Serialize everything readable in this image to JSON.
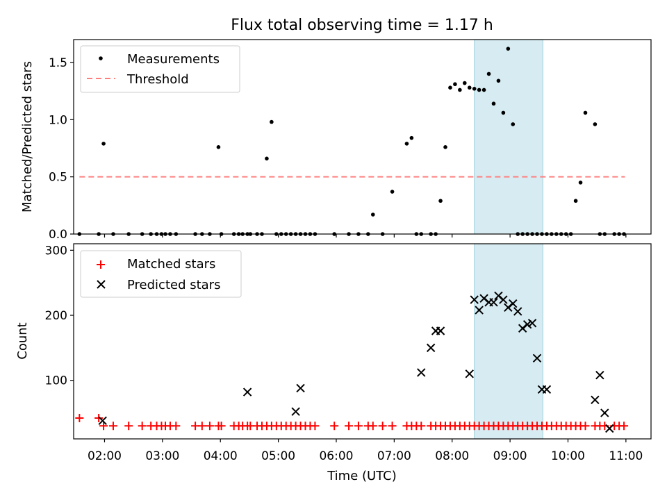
{
  "chart_data": [
    {
      "type": "scatter",
      "title": "Flux total observing time = 1.17 h",
      "xlabel": "",
      "ylabel": "Matched/Predicted stars",
      "xlim": [
        "01:28",
        "11:26"
      ],
      "ylim": [
        0,
        1.7
      ],
      "yticks": [
        0.0,
        0.5,
        1.0,
        1.5
      ],
      "ytick_labels": [
        "0.0",
        "0.5",
        "1.0",
        "1.5"
      ],
      "highlight_span": [
        "08:23",
        "09:34"
      ],
      "legend_position": "upper left",
      "series": [
        {
          "name": "Measurements",
          "marker": "dot",
          "color": "#000000",
          "x": [
            "01:34",
            "01:54",
            "01:59",
            "02:09",
            "02:25",
            "02:39",
            "02:48",
            "02:54",
            "02:59",
            "03:03",
            "03:08",
            "03:14",
            "03:34",
            "03:41",
            "03:49",
            "03:58",
            "04:01",
            "04:14",
            "04:19",
            "04:23",
            "04:28",
            "04:31",
            "04:38",
            "04:43",
            "04:48",
            "04:53",
            "04:58",
            "05:03",
            "05:08",
            "05:13",
            "05:18",
            "05:23",
            "05:28",
            "05:33",
            "05:38",
            "05:58",
            "06:13",
            "06:23",
            "06:33",
            "06:38",
            "06:48",
            "06:58",
            "07:13",
            "07:18",
            "07:23",
            "07:28",
            "07:38",
            "07:43",
            "07:48",
            "07:53",
            "07:58",
            "08:03",
            "08:08",
            "08:13",
            "08:18",
            "08:23",
            "08:28",
            "08:33",
            "08:38",
            "08:43",
            "08:48",
            "08:53",
            "08:58",
            "09:03",
            "09:08",
            "09:13",
            "09:18",
            "09:23",
            "09:28",
            "09:33",
            "09:38",
            "09:43",
            "09:48",
            "09:53",
            "09:58",
            "10:03",
            "10:08",
            "10:13",
            "10:18",
            "10:28",
            "10:33",
            "10:38",
            "10:48",
            "10:53",
            "10:58"
          ],
          "y": [
            0,
            0,
            0.79,
            0,
            0,
            0,
            0,
            0,
            0,
            0,
            0,
            0,
            0,
            0,
            0,
            0.76,
            0,
            0,
            0,
            0,
            0,
            0,
            0,
            0,
            0.66,
            0.98,
            0,
            0,
            0,
            0,
            0,
            0,
            0,
            0,
            0,
            0,
            0,
            0,
            0,
            0.17,
            0,
            0.37,
            0.79,
            0.84,
            0,
            0,
            0,
            0,
            0.29,
            0.76,
            1.28,
            1.31,
            1.26,
            1.32,
            1.28,
            1.27,
            1.26,
            1.26,
            1.4,
            1.14,
            1.34,
            1.06,
            1.62,
            0.96,
            0,
            0,
            0,
            0,
            0,
            0,
            0,
            0,
            0,
            0,
            0,
            0,
            0.29,
            0.45,
            1.06,
            0.96,
            0,
            0,
            0,
            0,
            0
          ]
        },
        {
          "name": "Threshold",
          "style": "dashed",
          "color": "#ff7f7f",
          "x": [
            "01:34",
            "10:59"
          ],
          "y": [
            0.5,
            0.5
          ]
        }
      ]
    },
    {
      "type": "scatter",
      "xlabel": "Time (UTC)",
      "ylabel": "Count",
      "xlim": [
        "01:28",
        "11:26"
      ],
      "ylim": [
        10,
        310
      ],
      "yticks": [
        100,
        200,
        300
      ],
      "ytick_labels": [
        "100",
        "200",
        "300"
      ],
      "xticks": [
        "02:00",
        "03:00",
        "04:00",
        "05:00",
        "06:00",
        "07:00",
        "08:00",
        "09:00",
        "10:00",
        "11:00"
      ],
      "xtick_labels": [
        "02:00",
        "03:00",
        "04:00",
        "05:00",
        "06:00",
        "07:00",
        "08:00",
        "09:00",
        "10:00",
        "11:00"
      ],
      "highlight_span": [
        "08:23",
        "09:34"
      ],
      "legend_position": "upper left",
      "series": [
        {
          "name": "Matched stars",
          "marker": "plus",
          "color": "#ff0000",
          "x": [
            "01:34",
            "01:54",
            "01:59",
            "02:09",
            "02:25",
            "02:39",
            "02:48",
            "02:54",
            "02:59",
            "03:03",
            "03:08",
            "03:14",
            "03:34",
            "03:41",
            "03:49",
            "03:58",
            "04:01",
            "04:14",
            "04:19",
            "04:23",
            "04:28",
            "04:31",
            "04:38",
            "04:43",
            "04:48",
            "04:53",
            "04:58",
            "05:03",
            "05:08",
            "05:13",
            "05:18",
            "05:23",
            "05:28",
            "05:33",
            "05:38",
            "05:58",
            "06:13",
            "06:23",
            "06:33",
            "06:38",
            "06:48",
            "06:58",
            "07:13",
            "07:18",
            "07:23",
            "07:28",
            "07:38",
            "07:43",
            "07:48",
            "07:53",
            "07:58",
            "08:03",
            "08:08",
            "08:13",
            "08:18",
            "08:23",
            "08:28",
            "08:33",
            "08:38",
            "08:43",
            "08:48",
            "08:53",
            "08:58",
            "09:03",
            "09:08",
            "09:13",
            "09:18",
            "09:23",
            "09:28",
            "09:33",
            "09:38",
            "09:43",
            "09:48",
            "09:53",
            "09:58",
            "10:03",
            "10:08",
            "10:13",
            "10:18",
            "10:28",
            "10:33",
            "10:38",
            "10:48",
            "10:53",
            "10:58"
          ],
          "y": [
            42,
            42,
            30,
            30,
            30,
            30,
            30,
            30,
            30,
            30,
            30,
            30,
            30,
            30,
            30,
            30,
            30,
            30,
            30,
            30,
            30,
            30,
            30,
            30,
            30,
            30,
            30,
            30,
            30,
            30,
            30,
            30,
            30,
            30,
            30,
            30,
            30,
            30,
            30,
            30,
            30,
            30,
            30,
            30,
            30,
            30,
            30,
            30,
            30,
            30,
            30,
            30,
            30,
            30,
            30,
            30,
            30,
            30,
            30,
            30,
            30,
            30,
            30,
            30,
            30,
            30,
            30,
            30,
            30,
            30,
            30,
            30,
            30,
            30,
            30,
            30,
            30,
            30,
            30,
            30,
            30,
            30,
            30,
            30,
            30
          ]
        },
        {
          "name": "Predicted stars",
          "marker": "x",
          "color": "#000000",
          "x": [
            "01:58",
            "04:28",
            "05:18",
            "05:23",
            "07:28",
            "07:38",
            "07:43",
            "07:48",
            "08:18",
            "08:23",
            "08:28",
            "08:33",
            "08:38",
            "08:43",
            "08:48",
            "08:53",
            "08:58",
            "09:03",
            "09:08",
            "09:13",
            "09:18",
            "09:23",
            "09:28",
            "09:33",
            "09:38",
            "10:28",
            "10:33",
            "10:38",
            "10:43"
          ],
          "y": [
            38,
            82,
            52,
            88,
            112,
            150,
            176,
            176,
            110,
            224,
            208,
            226,
            220,
            220,
            230,
            224,
            212,
            218,
            206,
            180,
            186,
            188,
            134,
            86,
            86,
            70,
            108,
            50,
            26
          ]
        }
      ]
    }
  ]
}
